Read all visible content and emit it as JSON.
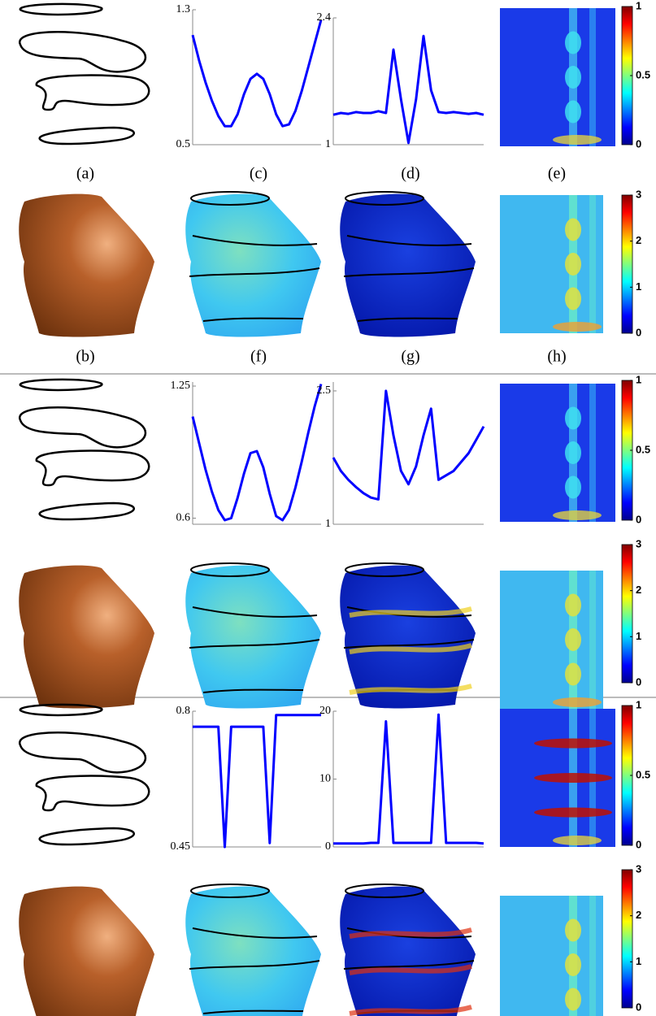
{
  "panel_labels": [
    "(a)",
    "(c)",
    "(d)",
    "(e)",
    "(b)",
    "(f)",
    "(g)",
    "(h)"
  ],
  "chart_data": [
    {
      "type": "line",
      "color": "#0000ff",
      "ylim": [
        0.5,
        1.3
      ],
      "yticks": [
        0.5,
        1.3
      ],
      "values": [
        1.15,
        1.0,
        0.87,
        0.76,
        0.67,
        0.61,
        0.61,
        0.68,
        0.8,
        0.89,
        0.92,
        0.89,
        0.8,
        0.68,
        0.61,
        0.62,
        0.7,
        0.82,
        0.96,
        1.1,
        1.24
      ]
    },
    {
      "type": "line",
      "color": "#0000ff",
      "ylim": [
        1,
        2.4
      ],
      "yticks": [
        1,
        2.4
      ],
      "values": [
        1.33,
        1.35,
        1.34,
        1.36,
        1.35,
        1.35,
        1.37,
        1.35,
        2.05,
        1.5,
        1.02,
        1.5,
        2.2,
        1.6,
        1.36,
        1.35,
        1.36,
        1.35,
        1.34,
        1.35,
        1.33
      ]
    },
    {
      "type": "line",
      "color": "#0000ff",
      "ylim": [
        0.57,
        1.27
      ],
      "yticks": [
        0.6,
        1.25
      ],
      "values": [
        1.1,
        0.97,
        0.84,
        0.73,
        0.64,
        0.59,
        0.6,
        0.7,
        0.82,
        0.92,
        0.93,
        0.85,
        0.72,
        0.61,
        0.59,
        0.64,
        0.75,
        0.88,
        1.02,
        1.15,
        1.26
      ]
    },
    {
      "type": "line",
      "color": "#0000ff",
      "ylim": [
        1,
        2.6
      ],
      "yticks": [
        1,
        2.5
      ],
      "values": [
        1.75,
        1.6,
        1.5,
        1.42,
        1.35,
        1.3,
        1.28,
        2.5,
        2.0,
        1.6,
        1.45,
        1.65,
        2.0,
        2.3,
        1.5,
        1.55,
        1.6,
        1.7,
        1.8,
        1.95,
        2.1
      ]
    },
    {
      "type": "line",
      "color": "#0000ff",
      "ylim": [
        0.45,
        0.8
      ],
      "yticks": [
        0.45,
        0.8
      ],
      "values": [
        0.76,
        0.76,
        0.76,
        0.76,
        0.76,
        0.45,
        0.76,
        0.76,
        0.76,
        0.76,
        0.76,
        0.76,
        0.46,
        0.79,
        0.79,
        0.79,
        0.79,
        0.79,
        0.79,
        0.79,
        0.79
      ]
    },
    {
      "type": "line",
      "color": "#0000ff",
      "ylim": [
        0,
        20
      ],
      "yticks": [
        0,
        10,
        20
      ],
      "values": [
        0.5,
        0.5,
        0.5,
        0.5,
        0.5,
        0.6,
        0.6,
        18.5,
        0.6,
        0.6,
        0.6,
        0.6,
        0.6,
        0.6,
        19.5,
        0.6,
        0.6,
        0.6,
        0.6,
        0.6,
        0.5
      ]
    }
  ],
  "colorbars": [
    {
      "lim": [
        0,
        1
      ],
      "ticks": [
        0,
        0.5,
        1
      ]
    },
    {
      "lim": [
        0,
        3
      ],
      "ticks": [
        0,
        1,
        2,
        3
      ]
    },
    {
      "lim": [
        0,
        1
      ],
      "ticks": [
        0,
        0.5,
        1
      ]
    },
    {
      "lim": [
        0,
        3
      ],
      "ticks": [
        0,
        1,
        2,
        3
      ]
    },
    {
      "lim": [
        0,
        1
      ],
      "ticks": [
        0,
        0.5,
        1
      ]
    },
    {
      "lim": [
        0,
        3
      ],
      "ticks": [
        0,
        1,
        2,
        3
      ]
    }
  ]
}
